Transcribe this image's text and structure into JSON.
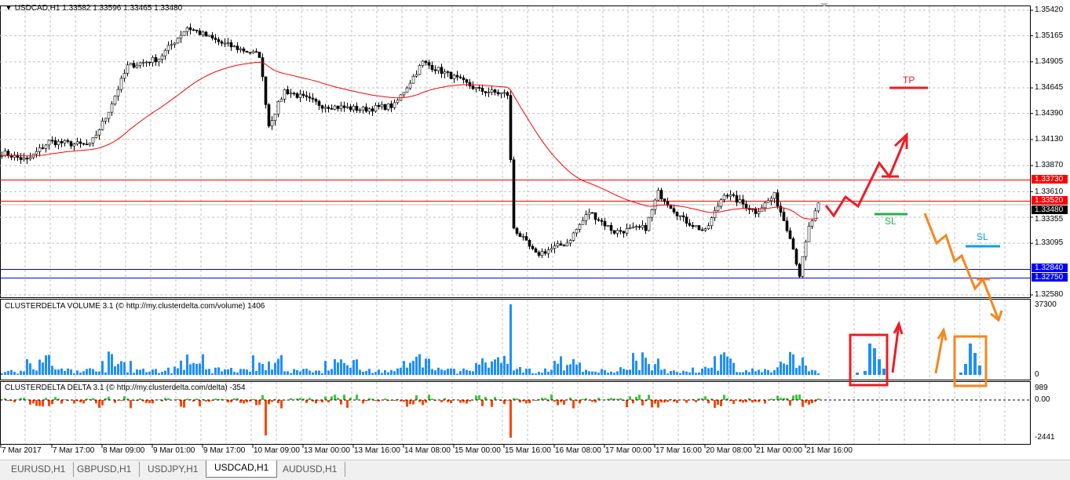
{
  "header": {
    "symbol": "USDCAD,H1",
    "open": "1.33582",
    "high": "1.33596",
    "low": "1.33465",
    "close": "1.33480"
  },
  "price_axis": [
    "1.35420",
    "1.35165",
    "1.34905",
    "1.34645",
    "1.34390",
    "1.34130",
    "1.33870",
    "1.33610",
    "1.33355",
    "1.33095",
    "1.32580"
  ],
  "levels": [
    {
      "price": "1.33730",
      "color": "#ff0000"
    },
    {
      "price": "1.33520",
      "color": "#ff0000"
    },
    {
      "price": "1.32840",
      "color": "#0000ff"
    },
    {
      "price": "1.32750",
      "color": "#0000ff"
    }
  ],
  "bid_label": "1.33480",
  "annotations": {
    "tp": "TP",
    "sl_buy": "SL",
    "sl_sell": "SL",
    "buy_color": "#ee1c24",
    "sell_color": "#f7851f",
    "sl_buy_color": "#22b14c",
    "sl_sell_color": "#00a2e8"
  },
  "volume": {
    "title": "CLUSTERDELTA VOLUME 3.1 (© http://my.clusterdelta.com/volume) 1406",
    "max": "37300",
    "min": "0",
    "color": "#1e8fff"
  },
  "delta": {
    "title": "CLUSTERDELTA DELTA 3.1 (© http://my.clusterdelta.com/delta) -354",
    "max": "989",
    "zero": "0.00",
    "min": "-2441",
    "pos_color": "#32cd32",
    "neg_color": "#ff4500"
  },
  "time_axis": [
    "7 Mar 2017",
    "7 Mar 17:00",
    "8 Mar 09:00",
    "9 Mar 01:00",
    "9 Mar 17:00",
    "10 Mar 09:00",
    "13 Mar 00:00",
    "13 Mar 16:00",
    "14 Mar 08:00",
    "15 Mar 00:00",
    "15 Mar 16:00",
    "16 Mar 08:00",
    "17 Mar 00:00",
    "17 Mar 16:00",
    "20 Mar 08:00",
    "21 Mar 00:00",
    "21 Mar 16:00"
  ],
  "tabs": [
    {
      "label": "EURUSD,H1"
    },
    {
      "label": "GBPUSD,H1"
    },
    {
      "label": "USDJPY,H1"
    },
    {
      "label": "USDCAD,H1",
      "active": true
    },
    {
      "label": "AUDUSD,H1"
    }
  ]
}
